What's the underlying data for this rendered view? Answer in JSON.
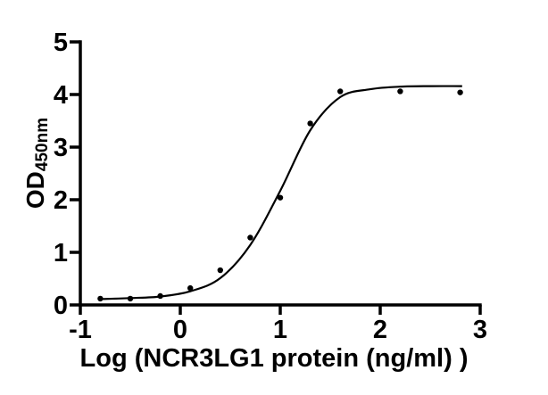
{
  "chart_data": {
    "type": "scatter",
    "xlabel": "Log (NCR3LG1 protein (ng/ml)  )",
    "ylabel_main": "OD",
    "ylabel_sub": "450nm",
    "xlim": [
      -1,
      3
    ],
    "ylim": [
      0,
      5
    ],
    "xticks": [
      -1,
      0,
      1,
      2,
      3
    ],
    "yticks": [
      0,
      1,
      2,
      3,
      4,
      5
    ],
    "grid": false,
    "legend": "none",
    "x": [
      -0.8,
      -0.5,
      -0.2,
      0.1,
      0.4,
      0.7,
      1.0,
      1.3,
      1.6,
      2.2,
      2.8
    ],
    "y": [
      0.12,
      0.12,
      0.17,
      0.32,
      0.66,
      1.28,
      2.04,
      3.45,
      4.06,
      4.06,
      4.04
    ],
    "curve_points": [
      [
        -0.81,
        0.11
      ],
      [
        -0.5,
        0.13
      ],
      [
        -0.2,
        0.16
      ],
      [
        0.1,
        0.26
      ],
      [
        0.4,
        0.51
      ],
      [
        0.7,
        1.14
      ],
      [
        1.0,
        2.17
      ],
      [
        1.3,
        3.32
      ],
      [
        1.6,
        3.95
      ],
      [
        1.9,
        4.1
      ],
      [
        2.2,
        4.15
      ],
      [
        2.5,
        4.16
      ],
      [
        2.82,
        4.16
      ]
    ],
    "colors": {
      "marker": "#000000",
      "line": "#000000",
      "axis": "#000000",
      "background": "#ffffff"
    }
  }
}
